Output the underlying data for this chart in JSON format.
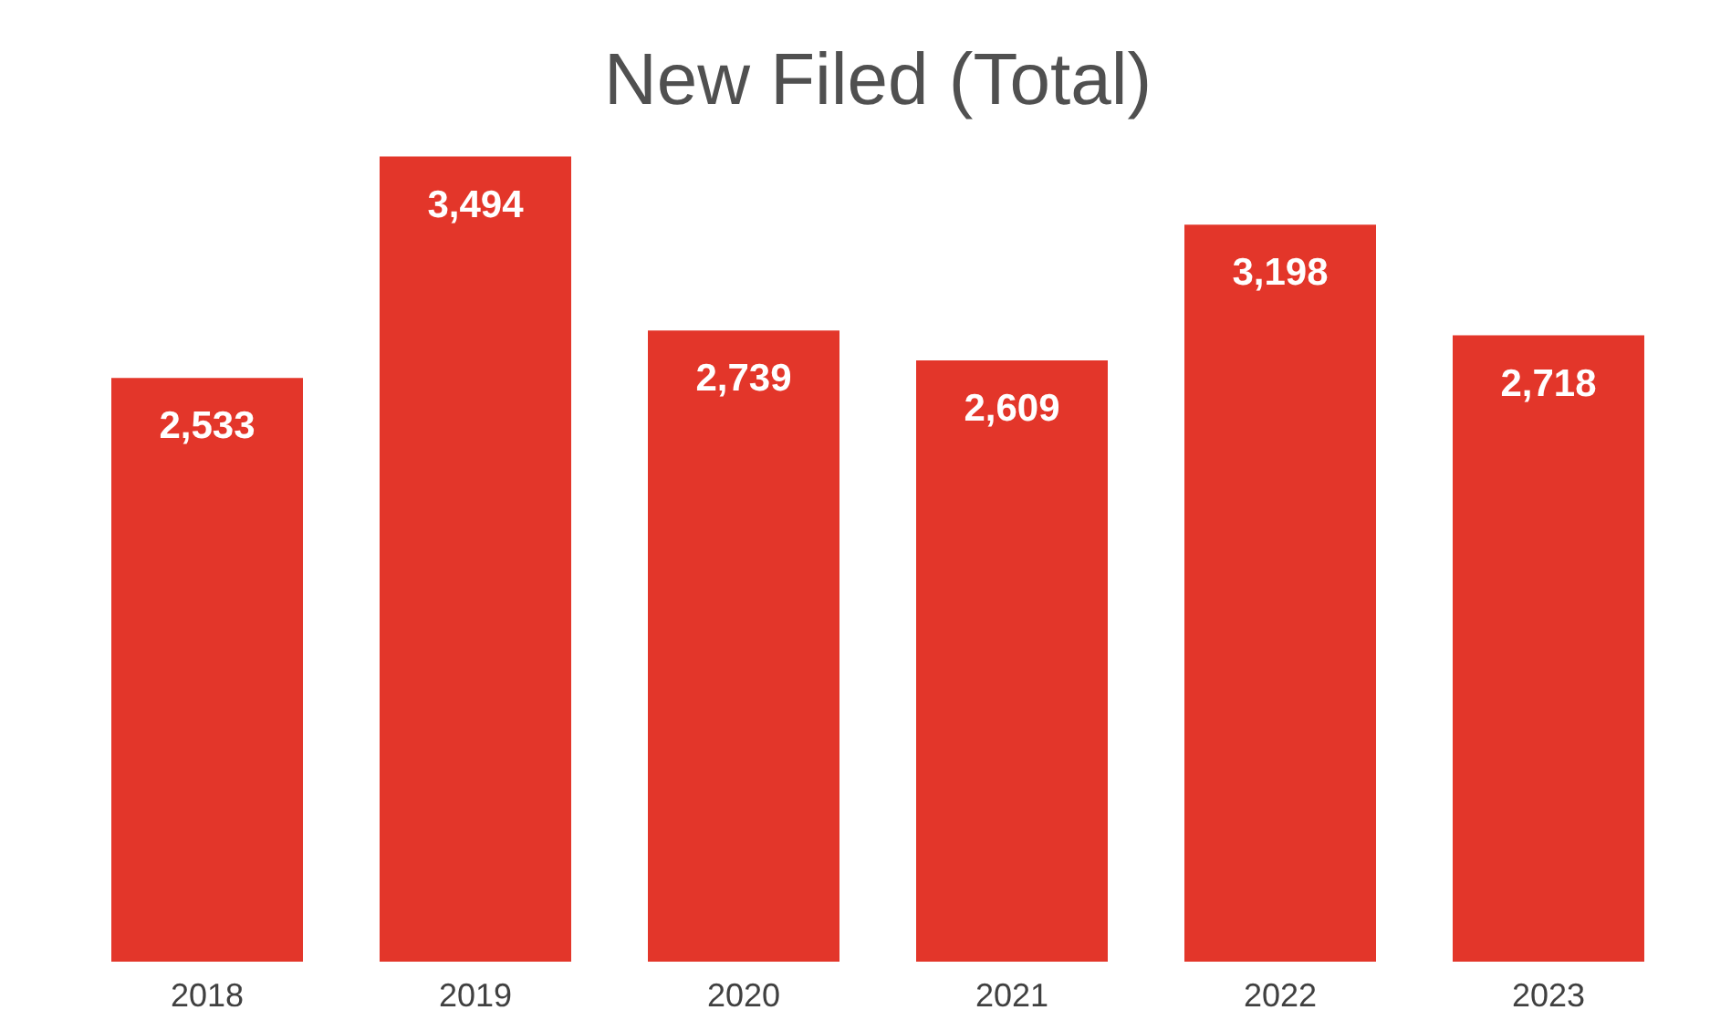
{
  "chart_data": {
    "type": "bar",
    "title": "New Filed (Total)",
    "categories": [
      "2018",
      "2019",
      "2020",
      "2021",
      "2022",
      "2023"
    ],
    "values": [
      2533,
      3494,
      2739,
      2609,
      3198,
      2718
    ],
    "color": "#e3362a",
    "value_labels": [
      "2,533",
      "3,494",
      "2,739",
      "2,609",
      "3,198",
      "2,718"
    ]
  }
}
